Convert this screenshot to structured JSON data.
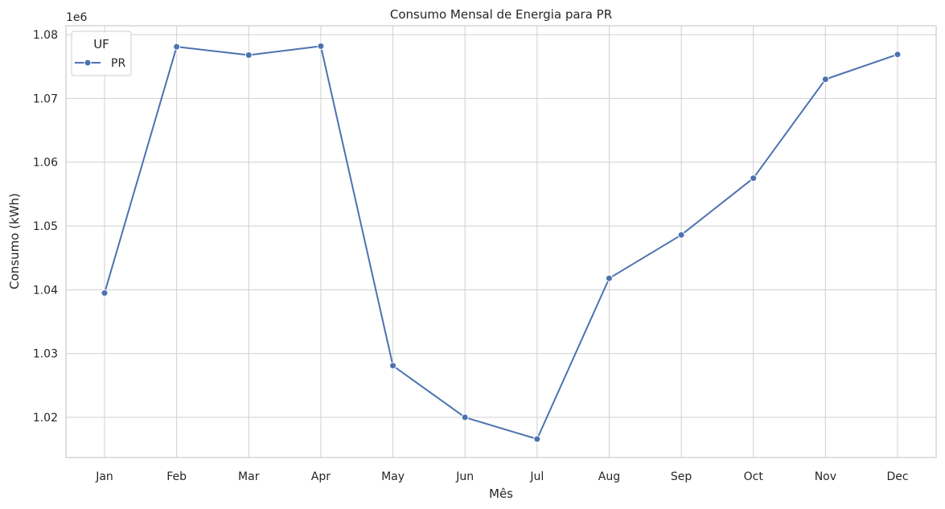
{
  "chart_data": {
    "type": "line",
    "title": "Consumo Mensal de Energia para PR",
    "xlabel": "Mês",
    "ylabel": "Consumo (kWh)",
    "y_offset_label": "1e6",
    "categories": [
      "Jan",
      "Feb",
      "Mar",
      "Apr",
      "May",
      "Jun",
      "Jul",
      "Aug",
      "Sep",
      "Oct",
      "Nov",
      "Dec"
    ],
    "series": [
      {
        "name": "PR",
        "values": [
          1039500,
          1078100,
          1076800,
          1078200,
          1028100,
          1020000,
          1016600,
          1041800,
          1048600,
          1057500,
          1073000,
          1076900
        ]
      }
    ],
    "ylim": [
      1013700,
      1081400
    ],
    "yticks": [
      1020000,
      1030000,
      1040000,
      1050000,
      1060000,
      1070000,
      1080000
    ],
    "ytick_labels": [
      "1.02",
      "1.03",
      "1.04",
      "1.05",
      "1.06",
      "1.07",
      "1.08"
    ],
    "legend": {
      "title": "UF",
      "position": "top-left"
    },
    "grid": true,
    "colors": {
      "line": "#4c72b0",
      "grid": "#d0d0d0",
      "spine": "#cccccc"
    }
  }
}
